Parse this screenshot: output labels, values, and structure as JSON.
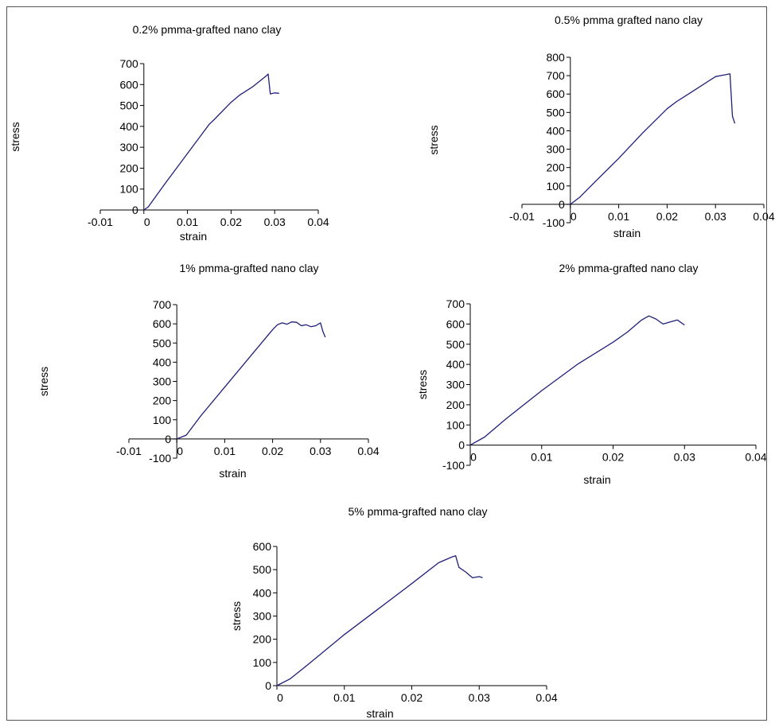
{
  "chart_data": [
    {
      "type": "line",
      "title": "0.2% pmma-grafted nano clay",
      "xlabel": "strain",
      "ylabel": "stress",
      "xlim": [
        -0.01,
        0.04
      ],
      "ylim": [
        0,
        700
      ],
      "x_ticks": [
        "-0.01",
        "0",
        "0.01",
        "0.02",
        "0.03",
        "0.04"
      ],
      "y_ticks": [
        "0",
        "100",
        "200",
        "300",
        "400",
        "500",
        "600",
        "700"
      ],
      "series_color": "#1f1f7a",
      "x": [
        0,
        0.001,
        0.005,
        0.01,
        0.015,
        0.016,
        0.02,
        0.022,
        0.025,
        0.028,
        0.0285,
        0.029,
        0.03,
        0.031
      ],
      "y": [
        0,
        15,
        130,
        270,
        410,
        430,
        515,
        550,
        590,
        640,
        650,
        555,
        560,
        558
      ]
    },
    {
      "type": "line",
      "title": "0.5% pmma grafted nano clay",
      "xlabel": "strain",
      "ylabel": "stress",
      "xlim": [
        -0.01,
        0.04
      ],
      "ylim": [
        -100,
        800
      ],
      "x_ticks": [
        "-0.01",
        "0",
        "0.01",
        "0.02",
        "0.03",
        "0.04"
      ],
      "y_ticks": [
        "-100",
        "0",
        "100",
        "200",
        "300",
        "400",
        "500",
        "600",
        "700",
        "800"
      ],
      "series_color": "#1f1f7a",
      "x": [
        0,
        0.002,
        0.005,
        0.01,
        0.015,
        0.02,
        0.022,
        0.025,
        0.03,
        0.032,
        0.033,
        0.0335,
        0.034
      ],
      "y": [
        0,
        40,
        120,
        250,
        390,
        520,
        560,
        610,
        695,
        705,
        710,
        480,
        440
      ]
    },
    {
      "type": "line",
      "title": "1% pmma-grafted nano clay",
      "xlabel": "strain",
      "ylabel": "stress",
      "xlim": [
        -0.01,
        0.04
      ],
      "ylim": [
        -100,
        700
      ],
      "x_ticks": [
        "-0.01",
        "0",
        "0.01",
        "0.02",
        "0.03",
        "0.04"
      ],
      "y_ticks": [
        "-100",
        "0",
        "100",
        "200",
        "300",
        "400",
        "500",
        "600",
        "700"
      ],
      "series_color": "#1f1f7a",
      "x": [
        0,
        0.002,
        0.005,
        0.01,
        0.015,
        0.02,
        0.021,
        0.022,
        0.023,
        0.024,
        0.025,
        0.026,
        0.027,
        0.028,
        0.029,
        0.03,
        0.0305,
        0.031
      ],
      "y": [
        0,
        20,
        120,
        270,
        420,
        570,
        595,
        605,
        598,
        610,
        608,
        590,
        595,
        585,
        590,
        605,
        560,
        530
      ]
    },
    {
      "type": "line",
      "title": "2% pmma-grafted nano clay",
      "xlabel": "strain",
      "ylabel": "stress",
      "xlim": [
        0,
        0.04
      ],
      "ylim": [
        -100,
        700
      ],
      "x_ticks": [
        "0",
        "0.01",
        "0.02",
        "0.03",
        "0.04"
      ],
      "y_ticks": [
        "-100",
        "0",
        "100",
        "200",
        "300",
        "400",
        "500",
        "600",
        "700"
      ],
      "series_color": "#1f1f7a",
      "x": [
        0,
        0.002,
        0.005,
        0.01,
        0.015,
        0.02,
        0.022,
        0.024,
        0.025,
        0.026,
        0.027,
        0.028,
        0.029,
        0.03
      ],
      "y": [
        0,
        40,
        130,
        270,
        400,
        510,
        560,
        620,
        640,
        625,
        600,
        610,
        620,
        595
      ]
    },
    {
      "type": "line",
      "title": "5% pmma-grafted nano clay",
      "xlabel": "strain",
      "ylabel": "stress",
      "xlim": [
        0,
        0.04
      ],
      "ylim": [
        0,
        600
      ],
      "x_ticks": [
        "0",
        "0.01",
        "0.02",
        "0.03",
        "0.04"
      ],
      "y_ticks": [
        "0",
        "100",
        "200",
        "300",
        "400",
        "500",
        "600"
      ],
      "series_color": "#1f1f7a",
      "x": [
        0,
        0.002,
        0.005,
        0.01,
        0.015,
        0.02,
        0.024,
        0.026,
        0.0265,
        0.027,
        0.028,
        0.029,
        0.03,
        0.0305
      ],
      "y": [
        0,
        30,
        100,
        220,
        330,
        440,
        530,
        555,
        560,
        510,
        490,
        465,
        470,
        465
      ]
    }
  ]
}
